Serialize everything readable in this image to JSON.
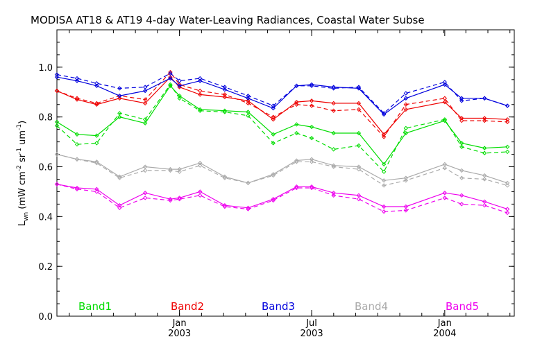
{
  "chart_data": {
    "type": "line",
    "title": "MODISA AT18 & AT19 4-day Water-Leaving Radiances, Coastal Water Subse",
    "ylabel_main": "L",
    "ylabel_sub": "wn",
    "ylabel_rest": " (mW cm",
    "ylabel_exp1": "-2",
    "ylabel_mid": " sr",
    "ylabel_exp2": "-1",
    "ylabel_um": " um",
    "ylabel_exp3": "-1",
    "ylabel_close": ")",
    "ylim": [
      0.0,
      1.15
    ],
    "yticks": [
      "0.0",
      "0.2",
      "0.4",
      "0.6",
      "0.8",
      "1.0"
    ],
    "ytick_values": [
      0.0,
      0.2,
      0.4,
      0.6,
      0.8,
      1.0
    ],
    "xticks": [
      {
        "month": "Jan",
        "year": "2003",
        "pos": 0.268
      },
      {
        "month": "Jul",
        "year": "2003",
        "pos": 0.557
      },
      {
        "month": "Jan",
        "year": "2004",
        "pos": 0.848
      }
    ],
    "x": [
      0.0,
      0.044,
      0.087,
      0.137,
      0.193,
      0.248,
      0.268,
      0.313,
      0.367,
      0.418,
      0.473,
      0.524,
      0.557,
      0.605,
      0.66,
      0.715,
      0.763,
      0.848,
      0.885,
      0.935,
      0.985
    ],
    "series": [
      {
        "name": "Band1",
        "color": "#00dd00",
        "solid": [
          0.78,
          0.73,
          0.725,
          0.8,
          0.775,
          0.925,
          0.885,
          0.83,
          0.825,
          0.82,
          0.73,
          0.77,
          0.76,
          0.735,
          0.735,
          0.61,
          0.735,
          0.785,
          0.695,
          0.675,
          0.68
        ],
        "dashed": [
          0.765,
          0.69,
          0.695,
          0.815,
          0.79,
          0.93,
          0.875,
          0.825,
          0.82,
          0.805,
          0.695,
          0.735,
          0.715,
          0.67,
          0.685,
          0.58,
          0.755,
          0.79,
          0.68,
          0.655,
          0.66
        ]
      },
      {
        "name": "Band2",
        "color": "#ee0000",
        "solid": [
          0.905,
          0.87,
          0.85,
          0.875,
          0.855,
          0.96,
          0.92,
          0.89,
          0.88,
          0.865,
          0.79,
          0.86,
          0.865,
          0.855,
          0.855,
          0.73,
          0.83,
          0.86,
          0.795,
          0.795,
          0.79
        ],
        "dashed": [
          0.905,
          0.875,
          0.855,
          0.885,
          0.87,
          0.98,
          0.93,
          0.905,
          0.89,
          0.855,
          0.8,
          0.85,
          0.845,
          0.825,
          0.83,
          0.72,
          0.85,
          0.875,
          0.785,
          0.785,
          0.78
        ]
      },
      {
        "name": "Band3",
        "color": "#0000dd",
        "solid": [
          0.96,
          0.945,
          0.925,
          0.885,
          0.905,
          0.955,
          0.925,
          0.945,
          0.91,
          0.875,
          0.835,
          0.925,
          0.93,
          0.92,
          0.915,
          0.81,
          0.875,
          0.93,
          0.875,
          0.875,
          0.845
        ],
        "dashed": [
          0.97,
          0.955,
          0.935,
          0.915,
          0.92,
          0.975,
          0.945,
          0.955,
          0.92,
          0.885,
          0.845,
          0.925,
          0.925,
          0.915,
          0.92,
          0.815,
          0.895,
          0.94,
          0.865,
          0.875,
          0.845
        ]
      },
      {
        "name": "Band4",
        "color": "#aaaaaa",
        "solid": [
          0.65,
          0.63,
          0.62,
          0.56,
          0.6,
          0.59,
          0.59,
          0.615,
          0.56,
          0.535,
          0.57,
          0.625,
          0.63,
          0.605,
          0.6,
          0.545,
          0.555,
          0.61,
          0.585,
          0.565,
          0.535
        ],
        "dashed": [
          0.65,
          0.63,
          0.615,
          0.555,
          0.585,
          0.585,
          0.58,
          0.605,
          0.555,
          0.535,
          0.565,
          0.62,
          0.62,
          0.6,
          0.59,
          0.525,
          0.545,
          0.595,
          0.555,
          0.55,
          0.525
        ]
      },
      {
        "name": "Band5",
        "color": "#ee00ee",
        "solid": [
          0.53,
          0.515,
          0.51,
          0.445,
          0.495,
          0.47,
          0.475,
          0.5,
          0.445,
          0.435,
          0.47,
          0.52,
          0.52,
          0.495,
          0.485,
          0.44,
          0.44,
          0.495,
          0.485,
          0.46,
          0.43
        ],
        "dashed": [
          0.53,
          0.51,
          0.5,
          0.435,
          0.475,
          0.465,
          0.47,
          0.485,
          0.44,
          0.43,
          0.465,
          0.515,
          0.515,
          0.485,
          0.47,
          0.42,
          0.425,
          0.475,
          0.45,
          0.445,
          0.415
        ]
      }
    ],
    "legend": [
      {
        "label": "Band1",
        "color": "#00dd00"
      },
      {
        "label": "Band2",
        "color": "#ee0000"
      },
      {
        "label": "Band3",
        "color": "#0000dd"
      },
      {
        "label": "Band4",
        "color": "#aaaaaa"
      },
      {
        "label": "Band5",
        "color": "#ee00ee"
      }
    ],
    "legend_position": "bottom-inside",
    "grid": false
  }
}
